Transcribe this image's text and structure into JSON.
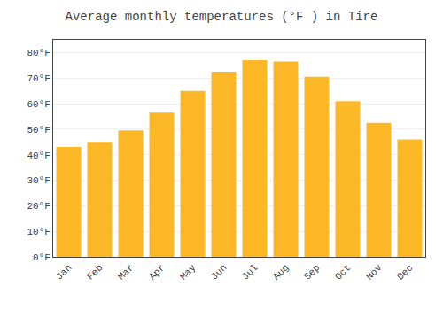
{
  "chart_data": {
    "type": "bar",
    "title": "Average monthly temperatures (°F ) in Tire",
    "categories": [
      "Jan",
      "Feb",
      "Mar",
      "Apr",
      "May",
      "Jun",
      "Jul",
      "Aug",
      "Sep",
      "Oct",
      "Nov",
      "Dec"
    ],
    "values": [
      43,
      45,
      49.5,
      56.5,
      65,
      72.5,
      77,
      76.5,
      70.5,
      61,
      52.5,
      46
    ],
    "color": "#FDB827",
    "ylim": [
      0,
      85
    ],
    "yticks": [
      {
        "value": 0,
        "label": "0°F"
      },
      {
        "value": 10,
        "label": "10°F"
      },
      {
        "value": 20,
        "label": "20°F"
      },
      {
        "value": 30,
        "label": "30°F"
      },
      {
        "value": 40,
        "label": "40°F"
      },
      {
        "value": 50,
        "label": "50°F"
      },
      {
        "value": 60,
        "label": "60°F"
      },
      {
        "value": 70,
        "label": "70°F"
      },
      {
        "value": 80,
        "label": "80°F"
      }
    ],
    "grid": true
  }
}
